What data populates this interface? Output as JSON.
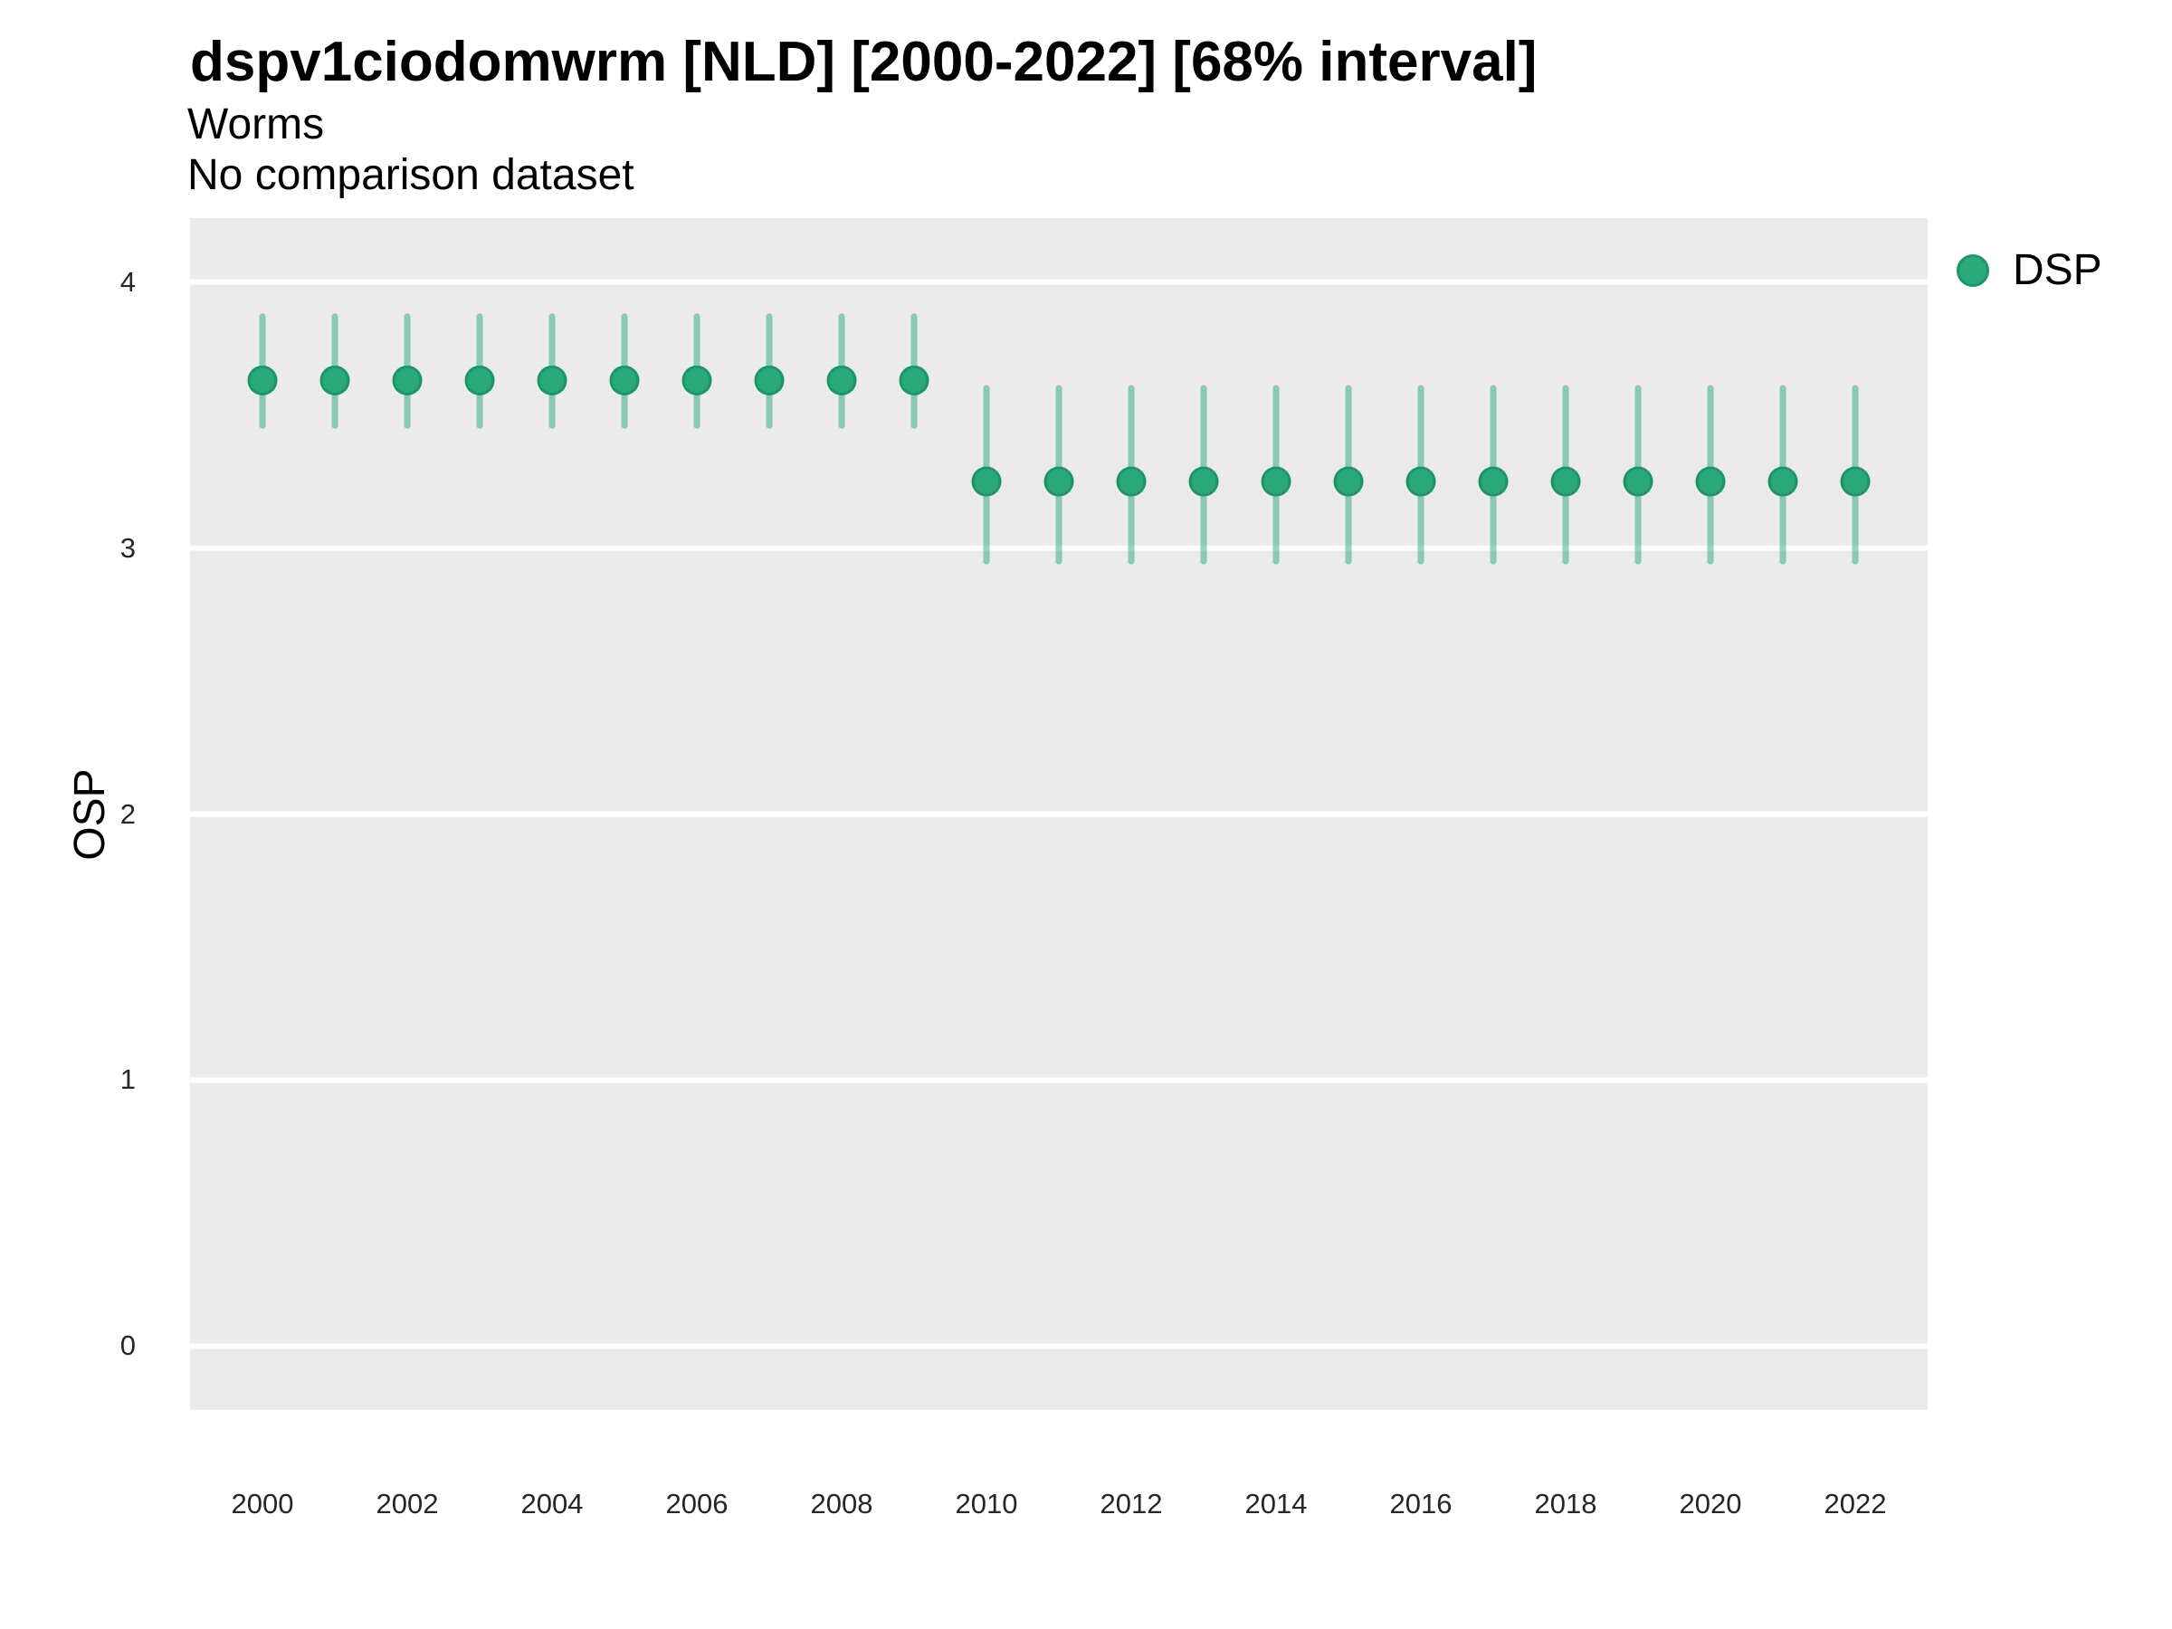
{
  "chart_data": {
    "type": "scatter",
    "title": "dspv1ciodomwrm [NLD] [2000-2022] [68% interval]",
    "subtitle": "Worms",
    "note": "No comparison dataset",
    "ylabel": "OSP",
    "xlabel": "",
    "legend_position": "right",
    "grid": "major-horizontal-white-on-grey",
    "x": [
      2000,
      2001,
      2002,
      2003,
      2004,
      2005,
      2006,
      2007,
      2008,
      2009,
      2010,
      2011,
      2012,
      2013,
      2014,
      2015,
      2016,
      2017,
      2018,
      2019,
      2020,
      2021,
      2022
    ],
    "series": [
      {
        "name": "DSP",
        "marker": "circle",
        "mean": [
          3.63,
          3.63,
          3.63,
          3.63,
          3.63,
          3.63,
          3.63,
          3.63,
          3.63,
          3.63,
          3.25,
          3.25,
          3.25,
          3.25,
          3.25,
          3.25,
          3.25,
          3.25,
          3.25,
          3.25,
          3.25,
          3.25,
          3.25
        ],
        "lower": [
          3.46,
          3.46,
          3.46,
          3.46,
          3.46,
          3.46,
          3.46,
          3.46,
          3.46,
          3.46,
          2.95,
          2.95,
          2.95,
          2.95,
          2.95,
          2.95,
          2.95,
          2.95,
          2.95,
          2.95,
          2.95,
          2.95,
          2.95
        ],
        "upper": [
          3.87,
          3.87,
          3.87,
          3.87,
          3.87,
          3.87,
          3.87,
          3.87,
          3.87,
          3.87,
          3.6,
          3.6,
          3.6,
          3.6,
          3.6,
          3.6,
          3.6,
          3.6,
          3.6,
          3.6,
          3.6,
          3.6,
          3.6
        ]
      }
    ],
    "x_ticks": [
      2000,
      2002,
      2004,
      2006,
      2008,
      2010,
      2012,
      2014,
      2016,
      2018,
      2020,
      2022
    ],
    "y_ticks": [
      0,
      1,
      2,
      3,
      4
    ],
    "xlim": [
      1999,
      2023
    ],
    "ylim": [
      -0.24,
      4.24
    ],
    "colors": {
      "point": "#2aa97b",
      "point_stroke": "#1f9468",
      "interval": "#2aa97b",
      "interval_opacity": 0.5,
      "panel": "#ebebeb",
      "gridline": "#ffffff",
      "title": "#000000",
      "tick": "#262626"
    }
  }
}
